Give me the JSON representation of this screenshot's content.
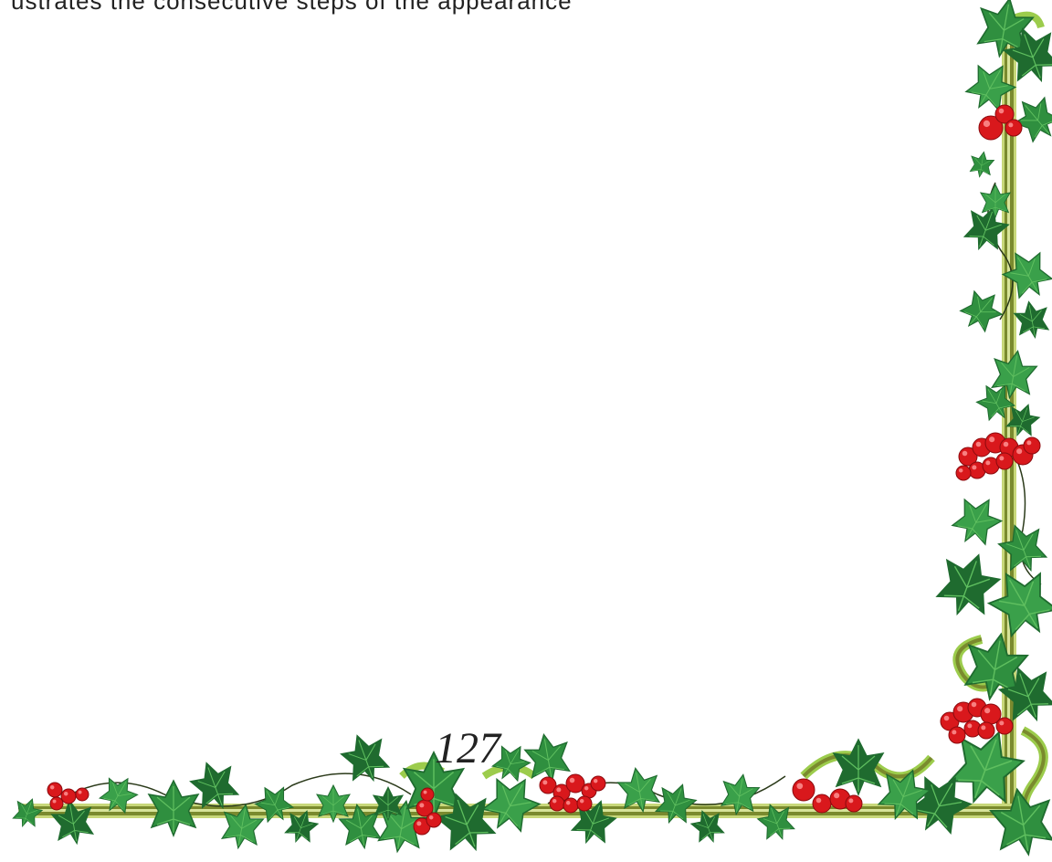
{
  "page": {
    "top_line_text": "ustrates the consecutive steps of the appearance",
    "page_number": "127"
  },
  "border": {
    "motif": "ivy-berry-corner-border",
    "colors": {
      "stem": "#7a8a2e",
      "stem_light": "#c8d87a",
      "leaf_dark": "#1f6b2f",
      "leaf_mid": "#2f8f3f",
      "leaf_light": "#5fbf5f",
      "berry": "#d9181c",
      "berry_dark": "#8c0a0e",
      "berry_highlight": "#ff9a9a",
      "scroll": "#9ccc4c"
    }
  }
}
